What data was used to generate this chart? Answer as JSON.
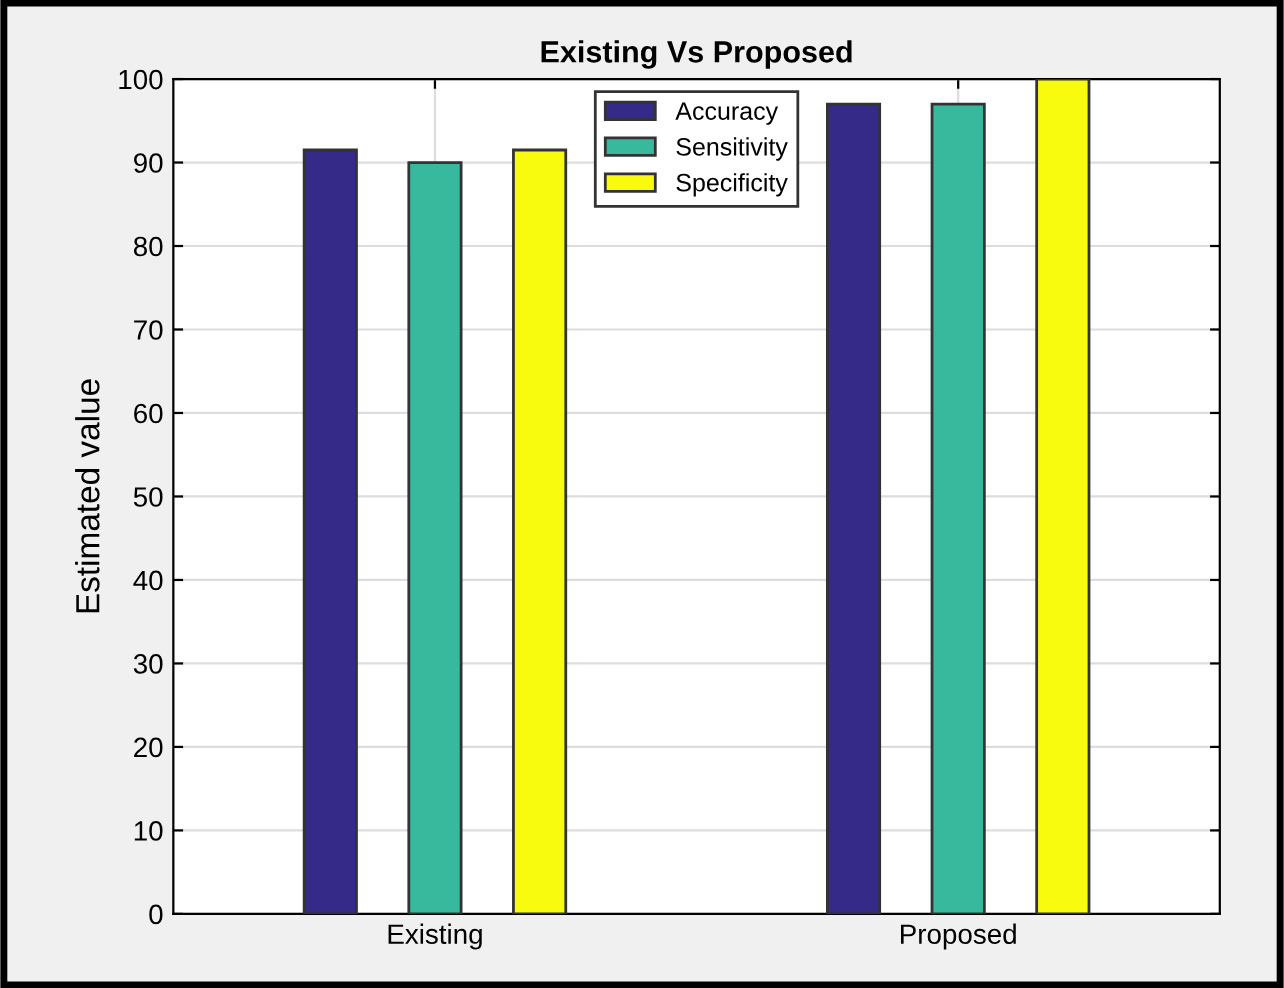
{
  "chart_data": {
    "type": "bar",
    "title": "Existing Vs Proposed",
    "ylabel": "Estimated value",
    "categories": [
      "Existing",
      "Proposed"
    ],
    "series": [
      {
        "name": "Accuracy",
        "color": "#352a87",
        "values": [
          91.5,
          97
        ]
      },
      {
        "name": "Sensitivity",
        "color": "#38b99e",
        "values": [
          90,
          97
        ]
      },
      {
        "name": "Specificity",
        "color": "#f9fb0e",
        "values": [
          91.5,
          100
        ]
      }
    ],
    "ylim": [
      0,
      100
    ],
    "yticks": [
      0,
      10,
      20,
      30,
      40,
      50,
      60,
      70,
      80,
      90,
      100
    ],
    "grid": true,
    "legend": "top"
  }
}
